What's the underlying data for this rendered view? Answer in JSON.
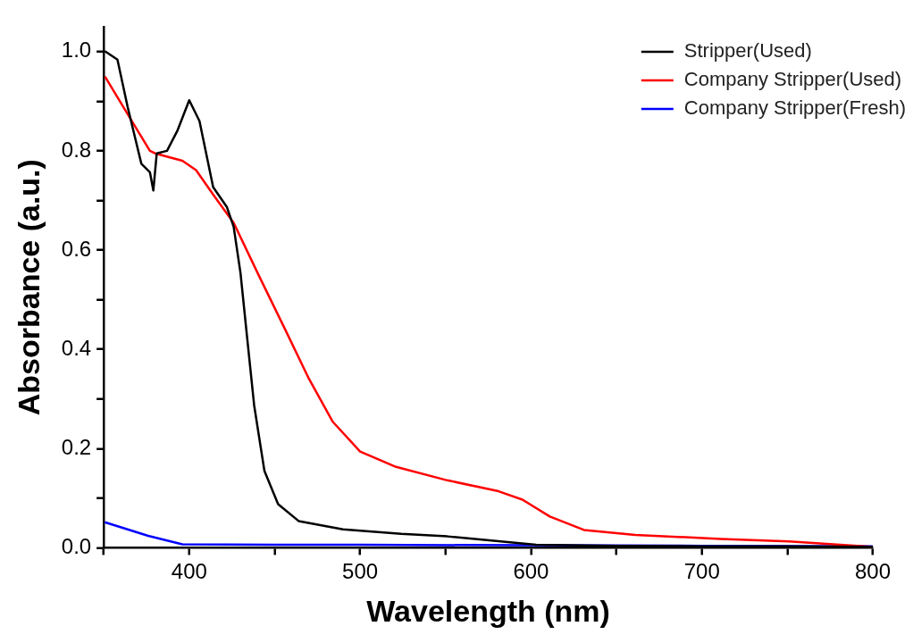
{
  "chart_data": {
    "type": "line",
    "xlabel": "Wavelength (nm)",
    "ylabel": "Absorbance (a.u.)",
    "xlim": [
      350,
      800
    ],
    "ylim": [
      0,
      1.05
    ],
    "xticks": [
      {
        "value": 350,
        "label": null
      },
      400,
      {
        "value": 450,
        "label": null
      },
      500,
      {
        "value": 550,
        "label": null
      },
      600,
      {
        "value": 650,
        "label": null
      },
      700,
      {
        "value": 750,
        "label": null
      },
      800
    ],
    "yticks": [
      {
        "value": 0,
        "label": "0.0"
      },
      {
        "value": 0.1,
        "label": null
      },
      0.2,
      {
        "value": 0.3,
        "label": null
      },
      0.4,
      {
        "value": 0.5,
        "label": null
      },
      0.6,
      {
        "value": 0.7,
        "label": null
      },
      0.8,
      {
        "value": 0.9,
        "label": null
      },
      {
        "value": 1,
        "label": "1.0"
      }
    ],
    "grid": false,
    "legend": "top right",
    "marker": "none",
    "line_style": "solid",
    "series": [
      {
        "name": "Stripper(Used)",
        "color": "#000000",
        "x": [
          351,
          358,
          364,
          372,
          377,
          379,
          381,
          387,
          393,
          400,
          406,
          414,
          422,
          426,
          430,
          434,
          438,
          444,
          452,
          464,
          490,
          524,
          551,
          603,
          650,
          700,
          750,
          800
        ],
        "values": [
          1.0,
          0.984,
          0.888,
          0.774,
          0.757,
          0.72,
          0.795,
          0.8,
          0.84,
          0.902,
          0.86,
          0.727,
          0.687,
          0.647,
          0.554,
          0.42,
          0.287,
          0.155,
          0.088,
          0.054,
          0.037,
          0.028,
          0.023,
          0.006,
          0.004,
          0.003,
          0.003,
          0.002
        ]
      },
      {
        "name": "Company Stripper(Used)",
        "color": "#ff0000",
        "x": [
          351,
          364,
          377,
          380,
          396,
          404,
          415,
          426,
          440,
          456,
          470,
          484,
          500,
          521,
          551,
          581,
          595,
          611,
          631,
          661,
          711,
          751,
          799
        ],
        "values": [
          0.948,
          0.874,
          0.8,
          0.795,
          0.78,
          0.761,
          0.707,
          0.655,
          0.554,
          0.441,
          0.341,
          0.254,
          0.194,
          0.163,
          0.136,
          0.114,
          0.097,
          0.063,
          0.036,
          0.026,
          0.018,
          0.013,
          0.002
        ]
      },
      {
        "name": "Company Stripper(Fresh)",
        "color": "#0000ff",
        "x": [
          351,
          376,
          396,
          450,
          500,
          600,
          700,
          800
        ],
        "values": [
          0.051,
          0.024,
          0.007,
          0.006,
          0.006,
          0.005,
          0.004,
          0.003
        ]
      }
    ]
  }
}
